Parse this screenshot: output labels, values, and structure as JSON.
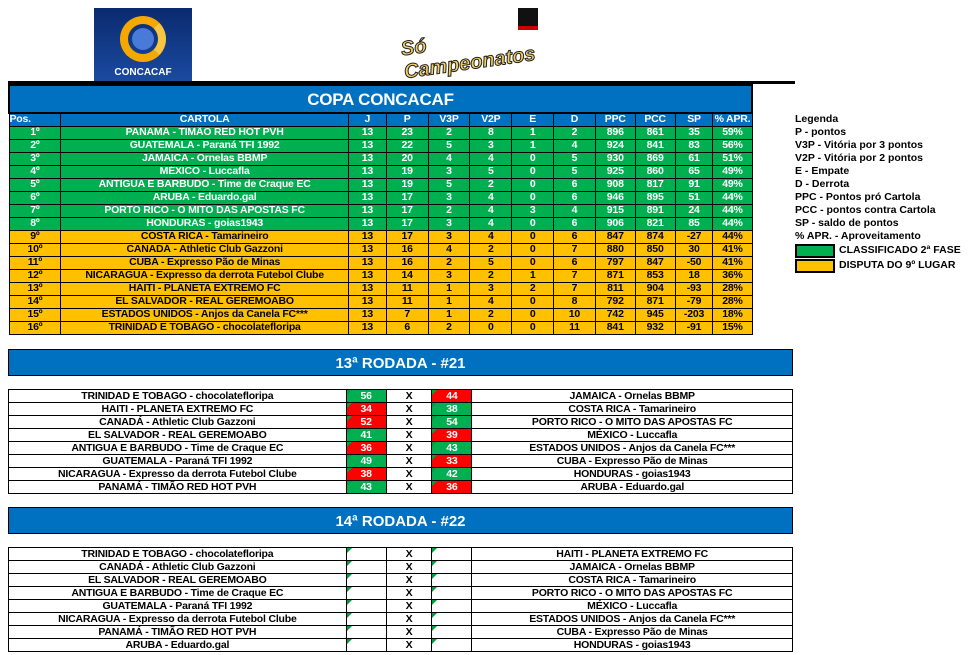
{
  "logos": {
    "concacaf": "CONCACAF",
    "so_campeonatos": "Só Campeonatos"
  },
  "standings": {
    "title": "COPA CONCACAF",
    "headers": [
      "Pos.",
      "CARTOLA",
      "J",
      "P",
      "V3P",
      "V2P",
      "E",
      "D",
      "PPC",
      "PCC",
      "SP",
      "% APR."
    ],
    "rows": [
      [
        "1º",
        "PANAMÁ - TIMÃO RED HOT PVH",
        "13",
        "23",
        "2",
        "8",
        "1",
        "2",
        "896",
        "861",
        "35",
        "59%",
        "g"
      ],
      [
        "2º",
        "GUATEMALA - Paraná TFI 1992",
        "13",
        "22",
        "5",
        "3",
        "1",
        "4",
        "924",
        "841",
        "83",
        "56%",
        "g"
      ],
      [
        "3º",
        "JAMAICA -  Ornelas BBMP",
        "13",
        "20",
        "4",
        "4",
        "0",
        "5",
        "930",
        "869",
        "61",
        "51%",
        "g"
      ],
      [
        "4º",
        "MÉXICO - Luccafla",
        "13",
        "19",
        "3",
        "5",
        "0",
        "5",
        "925",
        "860",
        "65",
        "49%",
        "g"
      ],
      [
        "5º",
        "ANTIGUA E BARBUDO - Time de Craque EC",
        "13",
        "19",
        "5",
        "2",
        "0",
        "6",
        "908",
        "817",
        "91",
        "49%",
        "g"
      ],
      [
        "6º",
        "ARUBA - Eduardo.gal",
        "13",
        "17",
        "3",
        "4",
        "0",
        "6",
        "946",
        "895",
        "51",
        "44%",
        "g"
      ],
      [
        "7º",
        "PORTO RICO - O MITO DAS APOSTAS FC",
        "13",
        "17",
        "2",
        "4",
        "3",
        "4",
        "915",
        "891",
        "24",
        "44%",
        "g"
      ],
      [
        "8º",
        "HONDURAS - goias1943",
        "13",
        "17",
        "3",
        "4",
        "0",
        "6",
        "906",
        "821",
        "85",
        "44%",
        "g"
      ],
      [
        "9º",
        "COSTA RICA -  Tamarineiro",
        "13",
        "17",
        "3",
        "4",
        "0",
        "6",
        "847",
        "874",
        "-27",
        "44%",
        "y"
      ],
      [
        "10º",
        "CANADÁ - Athletic Club Gazzoni",
        "13",
        "16",
        "4",
        "2",
        "0",
        "7",
        "880",
        "850",
        "30",
        "41%",
        "y"
      ],
      [
        "11º",
        "CUBA - Expresso Pão de Minas",
        "13",
        "16",
        "2",
        "5",
        "0",
        "6",
        "797",
        "847",
        "-50",
        "41%",
        "y"
      ],
      [
        "12º",
        "NICARAGUA - Expresso da derrota Futebol Clube",
        "13",
        "14",
        "3",
        "2",
        "1",
        "7",
        "871",
        "853",
        "18",
        "36%",
        "y"
      ],
      [
        "13º",
        "HAITI - PLANETA EXTREMO FC",
        "13",
        "11",
        "1",
        "3",
        "2",
        "7",
        "811",
        "904",
        "-93",
        "28%",
        "y"
      ],
      [
        "14º",
        "EL SALVADOR - REAL GEREMOABO",
        "13",
        "11",
        "1",
        "4",
        "0",
        "8",
        "792",
        "871",
        "-79",
        "28%",
        "y"
      ],
      [
        "15º",
        "ESTADOS UNIDOS - Anjos da Canela FC***",
        "13",
        "7",
        "1",
        "2",
        "0",
        "10",
        "742",
        "945",
        "-203",
        "18%",
        "y"
      ],
      [
        "16º",
        "TRINIDAD E TOBAGO - chocolatefloripa",
        "13",
        "6",
        "2",
        "0",
        "0",
        "11",
        "841",
        "932",
        "-91",
        "15%",
        "y"
      ]
    ]
  },
  "legend": {
    "title": "Legenda",
    "items": [
      "P - pontos",
      "V3P - Vitória por 3 pontos",
      "V2P - Vitória por 2 pontos",
      "E - Empate",
      "D - Derrota",
      "PPC - Pontos pró Cartola",
      "PCC - pontos contra Cartola",
      "SP - saldo de pontos",
      "% APR. - Aproveitamento"
    ],
    "classified": {
      "label": "CLASSIFICADO 2ª FASE",
      "color": "#00B050"
    },
    "dispute": {
      "label": "DISPUTA DO 9º LUGAR",
      "color": "#FFC000"
    }
  },
  "round13": {
    "title": "13ª RODADA - #21",
    "vs": "X",
    "matches": [
      [
        "TRINIDAD E TOBAGO - chocolatefloripa",
        "56",
        "44",
        "JAMAICA -  Ornelas BBMP"
      ],
      [
        "HAITI - PLANETA EXTREMO FC",
        "34",
        "38",
        "COSTA RICA -  Tamarineiro"
      ],
      [
        "CANADÁ - Athletic Club Gazzoni",
        "52",
        "54",
        "PORTO RICO - O MITO DAS APOSTAS FC"
      ],
      [
        "EL SALVADOR - REAL GEREMOABO",
        "41",
        "39",
        "MÉXICO - Luccafla"
      ],
      [
        "ANTIGUA E BARBUDO - Time de Craque EC",
        "36",
        "43",
        "ESTADOS UNIDOS - Anjos da Canela FC***"
      ],
      [
        "GUATEMALA - Paraná TFI 1992",
        "49",
        "33",
        "CUBA - Expresso Pão de Minas"
      ],
      [
        "NICARAGUA - Expresso da derrota Futebol Clube",
        "38",
        "42",
        "HONDURAS - goias1943"
      ],
      [
        "PANAMÁ - TIMÃO RED HOT PVH",
        "43",
        "36",
        "ARUBA - Eduardo.gal"
      ]
    ]
  },
  "round14": {
    "title": "14ª RODADA - #22",
    "vs": "X",
    "matches": [
      [
        "TRINIDAD E TOBAGO - chocolatefloripa",
        "",
        "",
        "HAITI - PLANETA EXTREMO FC"
      ],
      [
        "CANADÁ - Athletic Club Gazzoni",
        "",
        "",
        "JAMAICA -  Ornelas BBMP"
      ],
      [
        "EL SALVADOR - REAL GEREMOABO",
        "",
        "",
        "COSTA RICA -  Tamarineiro"
      ],
      [
        "ANTIGUA E BARBUDO - Time de Craque EC",
        "",
        "",
        "PORTO RICO - O MITO DAS APOSTAS FC"
      ],
      [
        "GUATEMALA - Paraná TFI 1992",
        "",
        "",
        "MÉXICO - Luccafla"
      ],
      [
        "NICARAGUA - Expresso da derrota Futebol Clube",
        "",
        "",
        "ESTADOS UNIDOS - Anjos da Canela FC***"
      ],
      [
        "PANAMÁ - TIMÃO RED HOT PVH",
        "",
        "",
        "CUBA - Expresso Pão de Minas"
      ],
      [
        "ARUBA - Eduardo.gal",
        "",
        "",
        "HONDURAS - goias1943"
      ]
    ]
  }
}
